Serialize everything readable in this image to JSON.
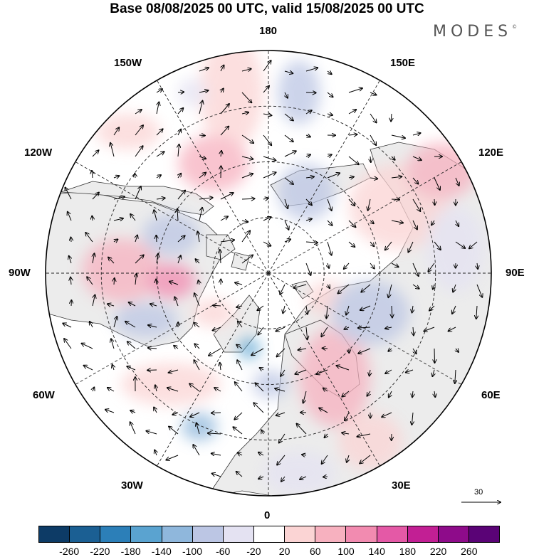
{
  "title": "Base 08/08/2025 00 UTC, valid 15/08/2025 00 UTC",
  "brand": "MODES",
  "brand_mark": "©",
  "map": {
    "longitude_labels": {
      "top": "180",
      "bottom": "0",
      "left": "90W",
      "right": "90E",
      "upper_left": "150W",
      "upper_right": "150E",
      "left_upper": "120W",
      "right_upper": "120E",
      "left_lower": "60W",
      "right_lower": "60E",
      "lower_left": "30W",
      "lower_right": "30E"
    },
    "reference_vector": "30",
    "colors": {
      "land": "#ececec",
      "ocean": "#ffffff",
      "coast": "#333333",
      "grid": "#222222"
    }
  },
  "colorbar": {
    "colors": [
      "#0d3b66",
      "#1b5f93",
      "#2c7fb8",
      "#5aa3d0",
      "#8fb7dc",
      "#bcc6e4",
      "#e4e2f2",
      "#ffffff",
      "#fbd4d4",
      "#f7b1bf",
      "#f28bb0",
      "#e459a6",
      "#c21f94",
      "#8e0b8a",
      "#5a0376"
    ],
    "tick_labels": [
      "-260",
      "-220",
      "-180",
      "-140",
      "-100",
      "-60",
      "-20",
      "20",
      "60",
      "100",
      "140",
      "180",
      "220",
      "260"
    ]
  }
}
